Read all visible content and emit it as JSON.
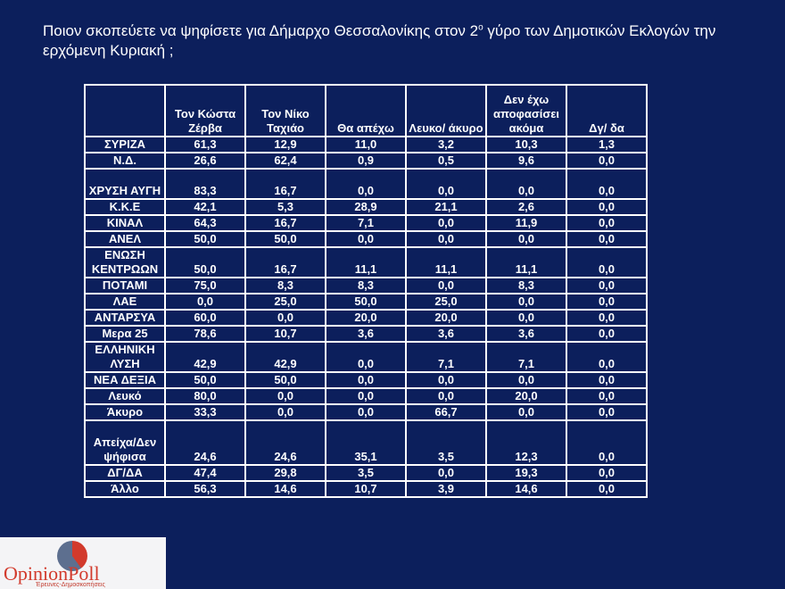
{
  "title": {
    "part1": "Ποιον σκοπεύετε να ψηφίσετε για Δήμαρχο Θεσσαλονίκης στον 2",
    "sup": "ο",
    "part2": " γύρο των Δημοτικών Εκλογών την ερχόμενη Κυριακή ;"
  },
  "table": {
    "headers": [
      "",
      "Τον Κώστα Ζέρβα",
      "Τον Νίκο Ταχιάο",
      "Θα απέχω",
      "Λευκο/ άκυρο",
      "Δεν έχω αποφασίσει ακόμα",
      "Δγ/ δα"
    ],
    "rows": [
      {
        "label": "ΣΥΡΙΖΑ",
        "values": [
          "61,3",
          "12,9",
          "11,0",
          "3,2",
          "10,3",
          "1,3"
        ],
        "size": "single"
      },
      {
        "label": "Ν.Δ.",
        "values": [
          "26,6",
          "62,4",
          "0,9",
          "0,5",
          "9,6",
          "0,0"
        ],
        "size": "single"
      },
      {
        "label": "ΧΡΥΣΗ ΑΥΓΗ",
        "values": [
          "83,3",
          "16,7",
          "0,0",
          "0,0",
          "0,0",
          "0,0"
        ],
        "size": "double"
      },
      {
        "label": "Κ.Κ.Ε",
        "values": [
          "42,1",
          "5,3",
          "28,9",
          "21,1",
          "2,6",
          "0,0"
        ],
        "size": "single"
      },
      {
        "label": "ΚΙΝΑΛ",
        "values": [
          "64,3",
          "16,7",
          "7,1",
          "0,0",
          "11,9",
          "0,0"
        ],
        "size": "single"
      },
      {
        "label": "ΑΝΕΛ",
        "values": [
          "50,0",
          "50,0",
          "0,0",
          "0,0",
          "0,0",
          "0,0"
        ],
        "size": "single"
      },
      {
        "label": "ΕΝΩΣΗ ΚΕΝΤΡΩΩΝ",
        "values": [
          "50,0",
          "16,7",
          "11,1",
          "11,1",
          "11,1",
          "0,0"
        ],
        "size": "double"
      },
      {
        "label": "ΠΟΤΑΜΙ",
        "values": [
          "75,0",
          "8,3",
          "8,3",
          "0,0",
          "8,3",
          "0,0"
        ],
        "size": "single"
      },
      {
        "label": "ΛΑΕ",
        "values": [
          "0,0",
          "25,0",
          "50,0",
          "25,0",
          "0,0",
          "0,0"
        ],
        "size": "single"
      },
      {
        "label": "ΑΝΤΑΡΣΥΑ",
        "values": [
          "60,0",
          "0,0",
          "20,0",
          "20,0",
          "0,0",
          "0,0"
        ],
        "size": "single"
      },
      {
        "label": "Μερα 25",
        "values": [
          "78,6",
          "10,7",
          "3,6",
          "3,6",
          "3,6",
          "0,0"
        ],
        "size": "single"
      },
      {
        "label": "ΕΛΛΗΝΙΚΗ ΛΥΣΗ",
        "values": [
          "42,9",
          "42,9",
          "0,0",
          "7,1",
          "7,1",
          "0,0"
        ],
        "size": "double"
      },
      {
        "label": "ΝΕΑ ΔΕΞΙΑ",
        "values": [
          "50,0",
          "50,0",
          "0,0",
          "0,0",
          "0,0",
          "0,0"
        ],
        "size": "single"
      },
      {
        "label": "Λευκό",
        "values": [
          "80,0",
          "0,0",
          "0,0",
          "0,0",
          "20,0",
          "0,0"
        ],
        "size": "single"
      },
      {
        "label": "Άκυρο",
        "values": [
          "33,3",
          "0,0",
          "0,0",
          "66,7",
          "0,0",
          "0,0"
        ],
        "size": "single"
      },
      {
        "label": "Απείχα/Δεν ψήφισα",
        "values": [
          "24,6",
          "24,6",
          "35,1",
          "3,5",
          "12,3",
          "0,0"
        ],
        "size": "triple"
      },
      {
        "label": "ΔΓ/ΔΑ",
        "values": [
          "47,4",
          "29,8",
          "3,5",
          "0,0",
          "19,3",
          "0,0"
        ],
        "size": "single"
      },
      {
        "label": "Άλλο",
        "values": [
          "56,3",
          "14,6",
          "10,7",
          "3,9",
          "14,6",
          "0,0"
        ],
        "size": "single"
      }
    ]
  },
  "logo": {
    "name": "OpinionPoll",
    "tagline": "Έρευνες-Δημοσκοπήσεις"
  }
}
